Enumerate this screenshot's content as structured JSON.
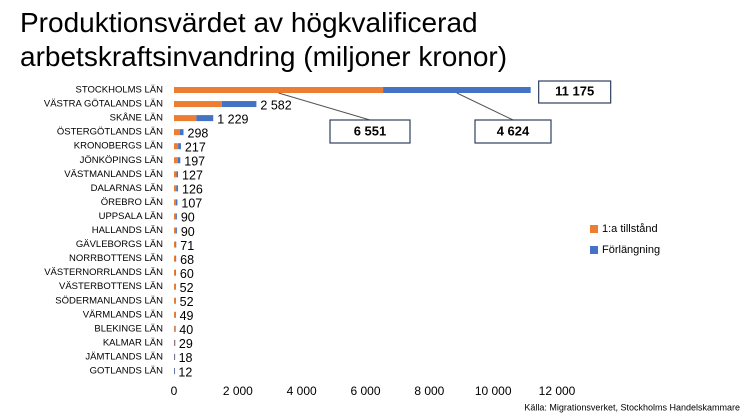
{
  "chart_data": {
    "type": "bar",
    "orientation": "horizontal",
    "stacked": true,
    "title": "Produktionsvärdet av högkvalificerad arbetskraftsinvandring (miljoner kronor)",
    "source": "Källa: Migrationsverket, Stockholms Handelskammare",
    "categories": [
      "STOCKHOLMS LÄN",
      "VÄSTRA GÖTALANDS LÄN",
      "SKÅNE LÄN",
      "ÖSTERGÖTLANDS LÄN",
      "KRONOBERGS LÄN",
      "JÖNKÖPINGS LÄN",
      "VÄSTMANLANDS LÄN",
      "DALARNAS LÄN",
      "ÖREBRO LÄN",
      "UPPSALA LÄN",
      "HALLANDS LÄN",
      "GÄVLEBORGS LÄN",
      "NORRBOTTENS LÄN",
      "VÄSTERNORRLANDS LÄN",
      "VÄSTERBOTTENS LÄN",
      "SÖDERMANLANDS LÄN",
      "VÄRMLANDS LÄN",
      "BLEKINGE LÄN",
      "KALMAR LÄN",
      "JÄMTLANDS LÄN",
      "GOTLANDS LÄN"
    ],
    "series": [
      {
        "name": "1:a tillstånd",
        "color": "#ed7d31",
        "values": [
          6551,
          1500,
          700,
          180,
          130,
          120,
          80,
          70,
          60,
          50,
          50,
          40,
          40,
          35,
          30,
          30,
          30,
          25,
          15,
          10,
          7
        ],
        "value_labels": [
          "6 551",
          null,
          null,
          null,
          null,
          null,
          null,
          null,
          null,
          null,
          null,
          null,
          null,
          null,
          null,
          null,
          null,
          null,
          null,
          null,
          null
        ]
      },
      {
        "name": "Förlängning",
        "color": "#4472c4",
        "values": [
          4624,
          1082,
          529,
          118,
          87,
          77,
          47,
          56,
          47,
          40,
          40,
          31,
          28,
          25,
          22,
          22,
          19,
          15,
          14,
          8,
          5
        ],
        "value_labels": [
          "4 624",
          null,
          null,
          null,
          null,
          null,
          null,
          null,
          null,
          null,
          null,
          null,
          null,
          null,
          null,
          null,
          null,
          null,
          null,
          null,
          null
        ]
      }
    ],
    "totals": [
      11175,
      2582,
      1229,
      298,
      217,
      197,
      127,
      126,
      107,
      90,
      90,
      71,
      68,
      60,
      52,
      52,
      49,
      40,
      29,
      18,
      12
    ],
    "total_labels": [
      "11 175",
      "2 582",
      "1 229",
      "298",
      "217",
      "197",
      "127",
      "126",
      "107",
      "90",
      "90",
      "71",
      "68",
      "60",
      "52",
      "52",
      "49",
      "40",
      "29",
      "18",
      "12"
    ],
    "xlim": [
      0,
      12000
    ],
    "xticks": [
      0,
      {
        "value": 2000,
        "label": "2 000"
      },
      {
        "value": 4000,
        "label": "4 000"
      },
      {
        "value": 6000,
        "label": "6 000"
      },
      {
        "value": 8000,
        "label": "8 000"
      },
      {
        "value": 10000,
        "label": "10 000"
      },
      {
        "value": 12000,
        "label": "12 000"
      }
    ],
    "legend": "right",
    "grid": false
  }
}
